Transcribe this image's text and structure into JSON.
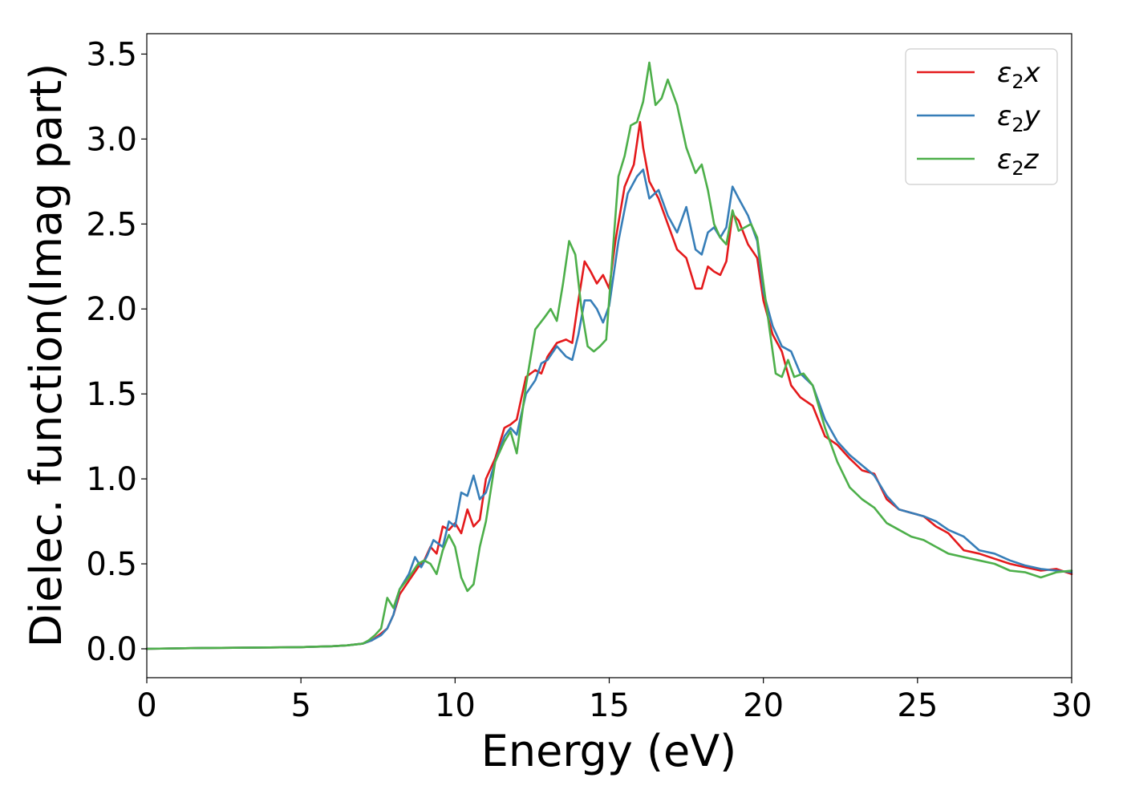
{
  "chart_data": {
    "type": "line",
    "title": "",
    "xlabel": "Energy (eV)",
    "ylabel": "Dielec. function(Imag part)",
    "xlim": [
      0,
      30
    ],
    "ylim": [
      -0.17,
      3.62
    ],
    "xticks": [
      0,
      5,
      10,
      15,
      20,
      25,
      30
    ],
    "xtick_labels": [
      "0",
      "5",
      "10",
      "15",
      "20",
      "25",
      "30"
    ],
    "yticks": [
      0.0,
      0.5,
      1.0,
      1.5,
      2.0,
      2.5,
      3.0,
      3.5
    ],
    "ytick_labels": [
      "0.0",
      "0.5",
      "1.0",
      "1.5",
      "2.0",
      "2.5",
      "3.0",
      "3.5"
    ],
    "grid": false,
    "legend_position": "top-right",
    "series": [
      {
        "name": "ε₂x",
        "legend_main": "ε",
        "legend_sub": "2",
        "legend_suffix": "x",
        "color": "#e41a1c",
        "x": [
          0,
          2,
          4,
          5,
          6,
          6.5,
          7,
          7.3,
          7.6,
          7.8,
          8.0,
          8.2,
          8.5,
          8.8,
          9.0,
          9.2,
          9.4,
          9.6,
          9.8,
          10.0,
          10.2,
          10.4,
          10.6,
          10.8,
          11.0,
          11.3,
          11.6,
          11.8,
          12.0,
          12.3,
          12.6,
          12.8,
          13.0,
          13.3,
          13.6,
          13.8,
          14.0,
          14.2,
          14.4,
          14.6,
          14.8,
          15.0,
          15.2,
          15.5,
          15.8,
          16.0,
          16.1,
          16.3,
          16.6,
          16.9,
          17.2,
          17.5,
          17.8,
          18.0,
          18.2,
          18.4,
          18.6,
          18.8,
          19.0,
          19.2,
          19.5,
          19.8,
          20.0,
          20.3,
          20.6,
          20.9,
          21.2,
          21.6,
          22.0,
          22.4,
          22.8,
          23.2,
          23.6,
          24.0,
          24.4,
          24.8,
          25.2,
          25.6,
          26.0,
          26.5,
          27.0,
          27.5,
          28.0,
          28.5,
          29.0,
          29.5,
          30.0
        ],
        "y": [
          0.0,
          0.005,
          0.008,
          0.01,
          0.015,
          0.02,
          0.03,
          0.05,
          0.09,
          0.12,
          0.2,
          0.32,
          0.4,
          0.48,
          0.52,
          0.6,
          0.56,
          0.72,
          0.7,
          0.74,
          0.68,
          0.82,
          0.72,
          0.76,
          1.0,
          1.12,
          1.3,
          1.32,
          1.35,
          1.6,
          1.64,
          1.62,
          1.72,
          1.8,
          1.82,
          1.8,
          2.05,
          2.28,
          2.22,
          2.15,
          2.2,
          2.12,
          2.4,
          2.72,
          2.85,
          3.1,
          2.95,
          2.75,
          2.65,
          2.5,
          2.35,
          2.3,
          2.12,
          2.12,
          2.25,
          2.22,
          2.2,
          2.28,
          2.56,
          2.52,
          2.38,
          2.3,
          2.05,
          1.85,
          1.75,
          1.55,
          1.48,
          1.43,
          1.25,
          1.2,
          1.12,
          1.05,
          1.03,
          0.88,
          0.82,
          0.8,
          0.78,
          0.72,
          0.68,
          0.58,
          0.56,
          0.53,
          0.5,
          0.48,
          0.46,
          0.47,
          0.44
        ]
      },
      {
        "name": "ε₂y",
        "legend_main": "ε",
        "legend_sub": "2",
        "legend_suffix": "y",
        "color": "#377eb8",
        "x": [
          0,
          2,
          4,
          5,
          6,
          6.5,
          7,
          7.3,
          7.6,
          7.8,
          8.0,
          8.2,
          8.5,
          8.7,
          8.9,
          9.1,
          9.3,
          9.6,
          9.8,
          10.0,
          10.2,
          10.4,
          10.6,
          10.8,
          11.0,
          11.3,
          11.6,
          11.8,
          12.0,
          12.3,
          12.6,
          12.8,
          13.0,
          13.3,
          13.6,
          13.8,
          14.0,
          14.2,
          14.4,
          14.6,
          14.8,
          15.0,
          15.3,
          15.6,
          15.9,
          16.1,
          16.3,
          16.6,
          16.9,
          17.2,
          17.5,
          17.8,
          18.0,
          18.2,
          18.4,
          18.6,
          18.8,
          19.0,
          19.2,
          19.5,
          19.8,
          20.0,
          20.3,
          20.6,
          20.9,
          21.2,
          21.6,
          22.0,
          22.4,
          22.8,
          23.2,
          23.6,
          24.0,
          24.4,
          24.8,
          25.2,
          25.6,
          26.0,
          26.5,
          27.0,
          27.5,
          28.0,
          28.5,
          29.0,
          29.5,
          30.0
        ],
        "y": [
          0.0,
          0.005,
          0.008,
          0.01,
          0.015,
          0.02,
          0.03,
          0.05,
          0.08,
          0.12,
          0.2,
          0.35,
          0.44,
          0.54,
          0.48,
          0.55,
          0.64,
          0.6,
          0.75,
          0.72,
          0.92,
          0.9,
          1.02,
          0.88,
          0.92,
          1.1,
          1.25,
          1.3,
          1.26,
          1.5,
          1.58,
          1.68,
          1.7,
          1.78,
          1.72,
          1.7,
          1.85,
          2.05,
          2.05,
          2.0,
          1.92,
          2.02,
          2.4,
          2.68,
          2.78,
          2.82,
          2.65,
          2.7,
          2.55,
          2.45,
          2.6,
          2.35,
          2.32,
          2.45,
          2.48,
          2.42,
          2.48,
          2.72,
          2.65,
          2.55,
          2.4,
          2.1,
          1.9,
          1.78,
          1.75,
          1.62,
          1.55,
          1.35,
          1.22,
          1.14,
          1.08,
          1.02,
          0.9,
          0.82,
          0.8,
          0.78,
          0.75,
          0.7,
          0.66,
          0.58,
          0.56,
          0.52,
          0.49,
          0.47,
          0.46,
          0.45
        ]
      },
      {
        "name": "ε₂z",
        "legend_main": "ε",
        "legend_sub": "2",
        "legend_suffix": "z",
        "color": "#4daf4a",
        "x": [
          0,
          2,
          4,
          5,
          6,
          6.5,
          7,
          7.2,
          7.4,
          7.6,
          7.8,
          8.0,
          8.2,
          8.5,
          8.8,
          9.0,
          9.2,
          9.4,
          9.6,
          9.8,
          10.0,
          10.2,
          10.4,
          10.6,
          10.8,
          11.0,
          11.3,
          11.6,
          11.8,
          12.0,
          12.3,
          12.6,
          12.9,
          13.1,
          13.3,
          13.5,
          13.7,
          13.9,
          14.1,
          14.3,
          14.5,
          14.7,
          14.9,
          15.1,
          15.3,
          15.5,
          15.7,
          15.9,
          16.1,
          16.3,
          16.5,
          16.7,
          16.9,
          17.2,
          17.5,
          17.8,
          18.0,
          18.2,
          18.4,
          18.6,
          18.8,
          19.0,
          19.2,
          19.4,
          19.6,
          19.8,
          20.0,
          20.2,
          20.4,
          20.6,
          20.8,
          21.0,
          21.3,
          21.6,
          22.0,
          22.4,
          22.8,
          23.2,
          23.6,
          24.0,
          24.4,
          24.8,
          25.2,
          25.6,
          26.0,
          26.5,
          27.0,
          27.5,
          28.0,
          28.5,
          29.0,
          29.5,
          30.0
        ],
        "y": [
          0.0,
          0.005,
          0.008,
          0.01,
          0.015,
          0.02,
          0.03,
          0.05,
          0.08,
          0.12,
          0.3,
          0.24,
          0.35,
          0.42,
          0.5,
          0.52,
          0.5,
          0.44,
          0.58,
          0.67,
          0.6,
          0.42,
          0.34,
          0.38,
          0.6,
          0.75,
          1.1,
          1.22,
          1.28,
          1.15,
          1.55,
          1.88,
          1.95,
          2.0,
          1.93,
          2.15,
          2.4,
          2.32,
          2.0,
          1.78,
          1.75,
          1.78,
          1.82,
          2.3,
          2.78,
          2.9,
          3.08,
          3.1,
          3.22,
          3.45,
          3.2,
          3.24,
          3.35,
          3.2,
          2.95,
          2.8,
          2.85,
          2.7,
          2.5,
          2.42,
          2.38,
          2.58,
          2.46,
          2.48,
          2.5,
          2.42,
          2.15,
          1.88,
          1.62,
          1.6,
          1.7,
          1.6,
          1.62,
          1.55,
          1.3,
          1.1,
          0.95,
          0.88,
          0.83,
          0.74,
          0.7,
          0.66,
          0.64,
          0.6,
          0.56,
          0.54,
          0.52,
          0.5,
          0.46,
          0.45,
          0.42,
          0.45,
          0.46
        ]
      }
    ]
  }
}
